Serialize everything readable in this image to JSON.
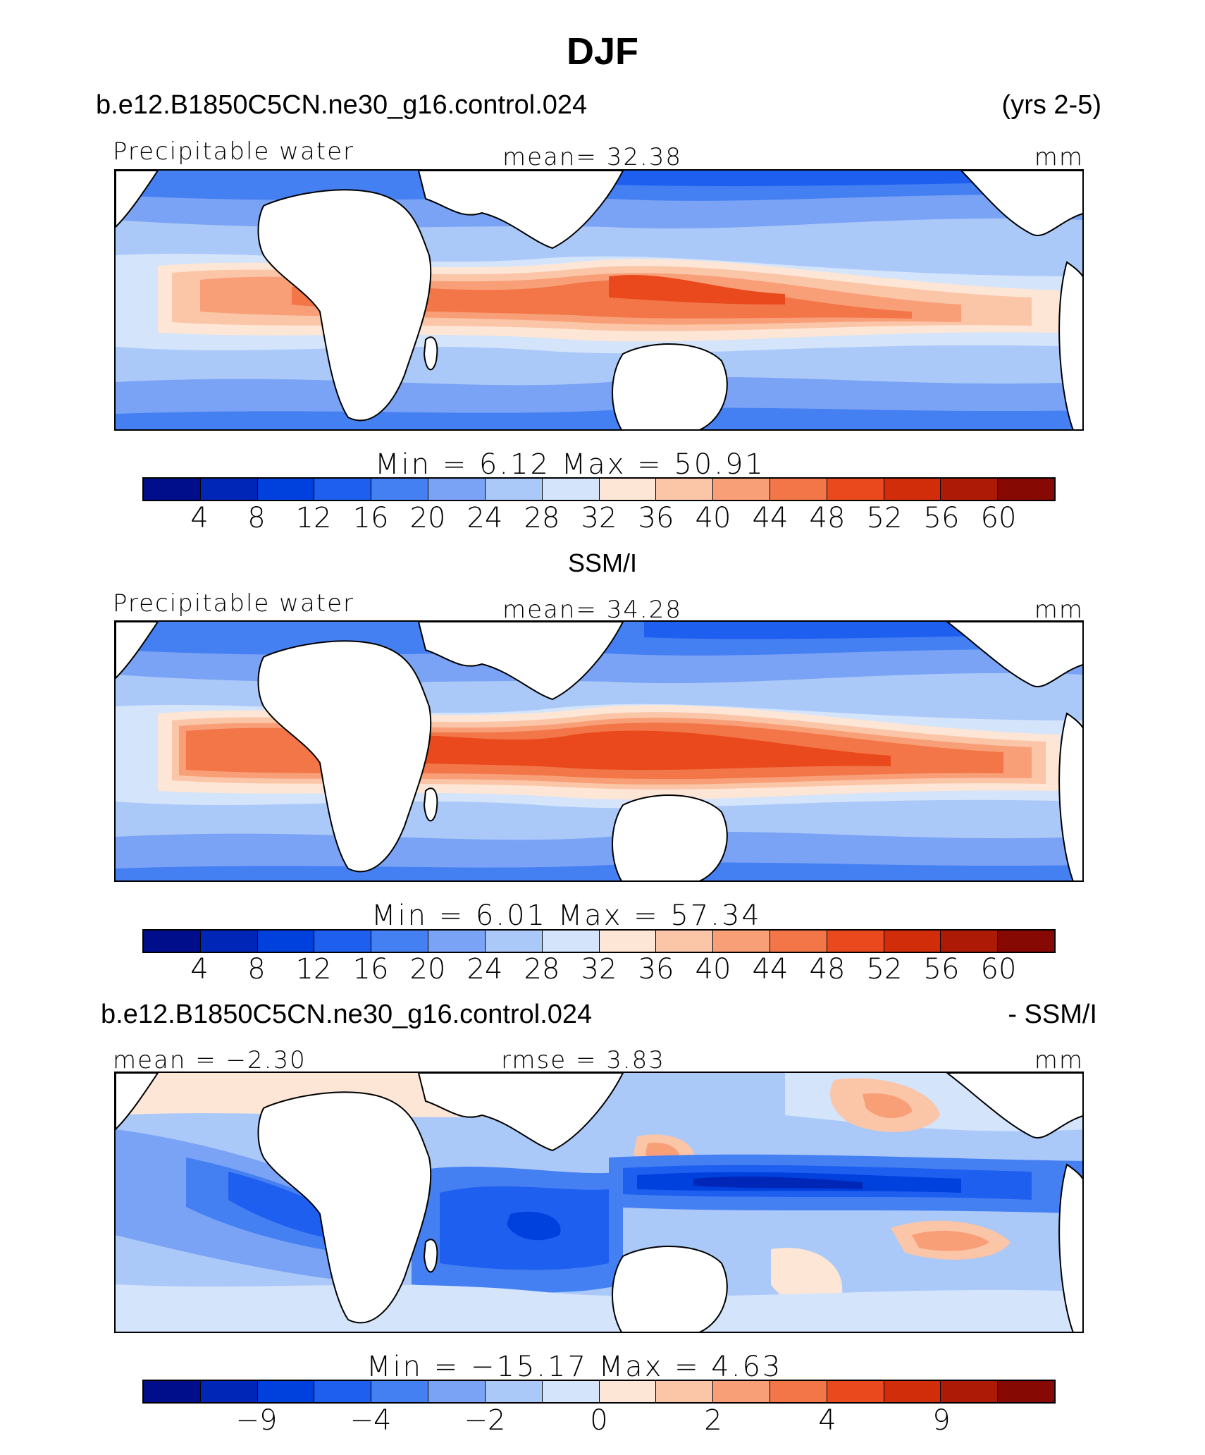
{
  "title": "DJF",
  "model_case": "b.e12.B1850C5CN.ne30_g16.control.024",
  "years": "(yrs 2-5)",
  "obs_name": "SSM/I",
  "diff_case": "b.e12.B1850C5CN.ne30_g16.control.024",
  "diff_suffix": "- SSM/I",
  "colors": {
    "scale": [
      "#000e8c",
      "#0026b8",
      "#0040dd",
      "#1f5ff0",
      "#4580f2",
      "#7aa3f5",
      "#aac8f8",
      "#d3e4fb",
      "#fde6d5",
      "#fbc5a8",
      "#f89f78",
      "#f27647",
      "#e9491d",
      "#d22d0b",
      "#ad1a06",
      "#860a03"
    ],
    "land": "#ffffff",
    "coast": "#000000"
  },
  "panels": {
    "model": {
      "variable": "Precipitable water",
      "mean_label": "mean=  32.38",
      "units": "mm",
      "min_max_label": "Min  =    6.12  Max  =   50.91",
      "colorbar_ticks": [
        "4",
        "8",
        "12",
        "16",
        "20",
        "24",
        "28",
        "32",
        "36",
        "40",
        "44",
        "48",
        "52",
        "56",
        "60"
      ]
    },
    "obs": {
      "variable": "Precipitable water",
      "mean_label": "mean=  34.28",
      "units": "mm",
      "min_max_label": "Min  =    6.01  Max  =   57.34",
      "colorbar_ticks": [
        "4",
        "8",
        "12",
        "16",
        "20",
        "24",
        "28",
        "32",
        "36",
        "40",
        "44",
        "48",
        "52",
        "56",
        "60"
      ]
    },
    "diff": {
      "mean_label": "mean =  −2.30",
      "rmse_label": "rmse =     3.83",
      "units": "mm",
      "min_max_label": "Min  = −15.17  Max  =    4.63",
      "colorbar_ticks": [
        "−9",
        "−4",
        "−2",
        "0",
        "2",
        "4",
        "9"
      ]
    }
  }
}
